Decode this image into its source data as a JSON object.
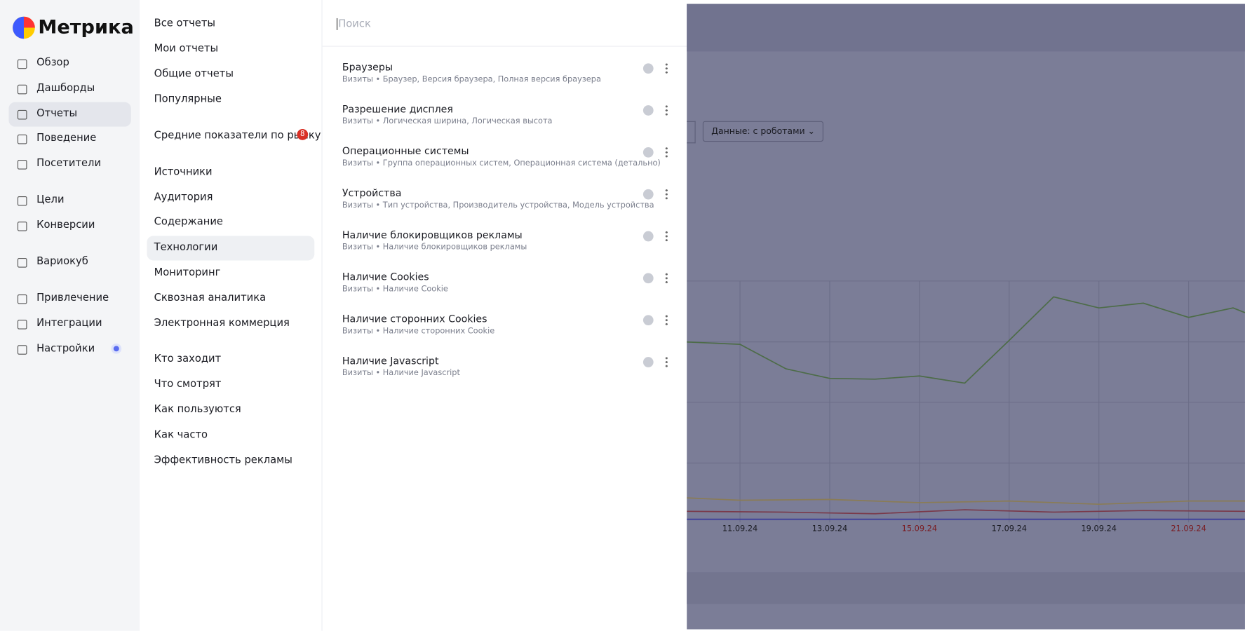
{
  "logo": "Метрика",
  "nav": [
    [
      "Обзор",
      "Дашборды",
      "Отчеты",
      "Поведение",
      "Посетители"
    ],
    [
      "Цели",
      "Конверсии"
    ],
    [
      "Вариокуб"
    ],
    [
      "Привлечение",
      "Интеграции",
      "Настройки"
    ]
  ],
  "submenu": [
    [
      "Все отчеты",
      "Мои отчеты",
      "Общие отчеты",
      "Популярные"
    ],
    [
      "Средние показатели по рынку"
    ],
    [
      "Источники",
      "Аудитория",
      "Содержание",
      "Технологии",
      "Мониторинг",
      "Сквозная аналитика",
      "Электронная коммерция"
    ],
    [
      "Кто заходит",
      "Что смотрят",
      "Как пользуются",
      "Как часто",
      "Эффективность рекламы"
    ]
  ],
  "market_badge": "8",
  "search_placeholder": "Поиск",
  "reports": [
    {
      "title": "Браузеры",
      "subtitle": "Визиты • Браузер, Версия браузера, Полная версия браузера"
    },
    {
      "title": "Разрешение дисплея",
      "subtitle": "Визиты • Логическая ширина, Логическая высота"
    },
    {
      "title": "Операционные системы",
      "subtitle": "Визиты • Группа операционных систем, Операционная система (детально)"
    },
    {
      "title": "Устройства",
      "subtitle": "Визиты • Тип устройства, Производитель устройства, Модель устройства"
    },
    {
      "title": "Наличие блокировщиков рекламы",
      "subtitle": "Визиты • Наличие блокировщиков рекламы"
    },
    {
      "title": "Наличие Cookies",
      "subtitle": "Визиты • Наличие Cookie"
    },
    {
      "title": "Наличие сторонних Cookies",
      "subtitle": "Визиты • Наличие сторонних Cookie"
    },
    {
      "title": "Наличие Javascript",
      "subtitle": "Визиты • Наличие Javascript"
    }
  ],
  "background": {
    "data_button": "Данные: с роботами",
    "dates": [
      {
        "text": "11.09.24",
        "color": "#1a1b22"
      },
      {
        "text": "13.09.24",
        "color": "#1a1b22"
      },
      {
        "text": "15.09.24",
        "color": "#7a1c22"
      },
      {
        "text": "17.09.24",
        "color": "#1a1b22"
      },
      {
        "text": "19.09.24",
        "color": "#1a1b22"
      },
      {
        "text": "21.09.24",
        "color": "#7a1c22"
      }
    ]
  }
}
